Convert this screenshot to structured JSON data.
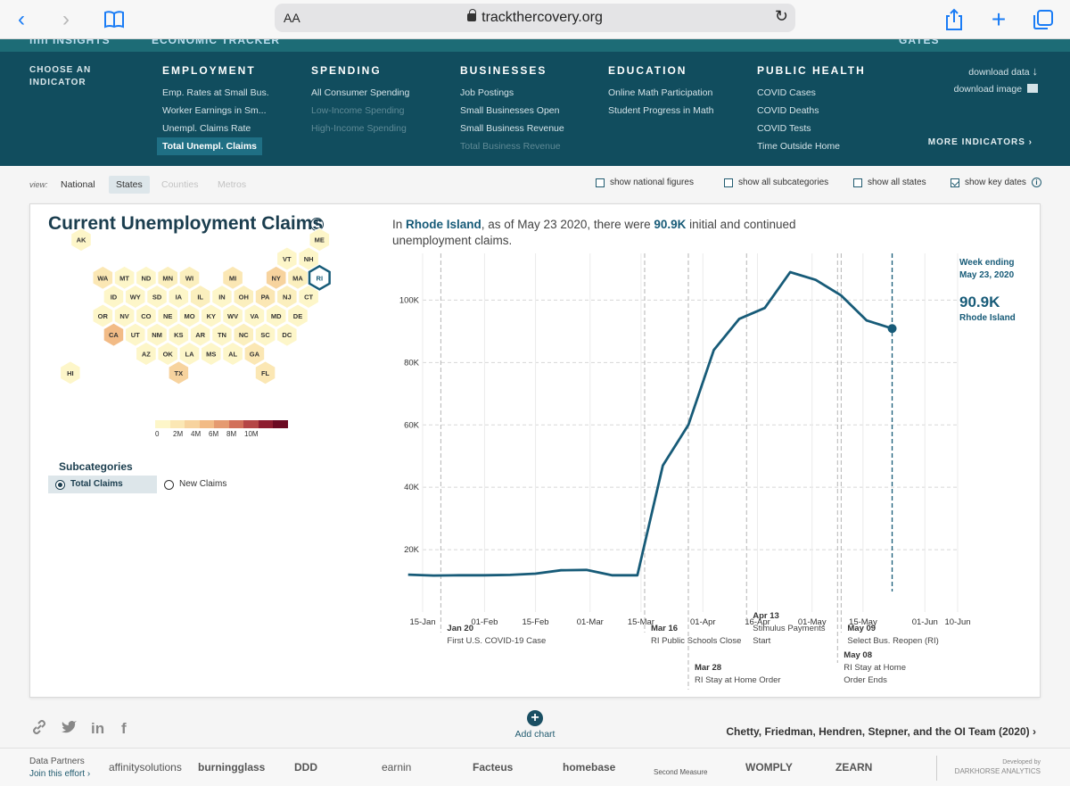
{
  "browser": {
    "url": "trackthercovery.org",
    "aa": "AA",
    "back_glyph": "‹",
    "forward_glyph": "›",
    "reload_glyph": "↻"
  },
  "header": {
    "strip_frag1": "ılılı INSIGHTS",
    "strip_frag2": "ECONOMIC TRACKER",
    "strip_frag3": "GATES"
  },
  "nav": {
    "choose_label": "CHOOSE AN INDICATOR",
    "columns": [
      {
        "title": "EMPLOYMENT",
        "items": [
          {
            "label": "Emp. Rates at Small Bus.",
            "state": "normal"
          },
          {
            "label": "Worker Earnings in Sm...",
            "state": "normal"
          },
          {
            "label": "Unempl. Claims Rate",
            "state": "normal"
          },
          {
            "label": "Total Unempl. Claims",
            "state": "active"
          }
        ]
      },
      {
        "title": "SPENDING",
        "items": [
          {
            "label": "All Consumer Spending",
            "state": "normal"
          },
          {
            "label": "Low-Income Spending",
            "state": "dim"
          },
          {
            "label": "High-Income Spending",
            "state": "dim"
          }
        ]
      },
      {
        "title": "BUSINESSES",
        "items": [
          {
            "label": "Job Postings",
            "state": "normal"
          },
          {
            "label": "Small Businesses Open",
            "state": "normal"
          },
          {
            "label": "Small Business Revenue",
            "state": "normal"
          },
          {
            "label": "Total Business Revenue",
            "state": "dim"
          }
        ]
      },
      {
        "title": "EDUCATION",
        "items": [
          {
            "label": "Online Math Participation",
            "state": "normal"
          },
          {
            "label": "Student Progress in Math",
            "state": "normal"
          }
        ]
      },
      {
        "title": "PUBLIC HEALTH",
        "items": [
          {
            "label": "COVID Cases",
            "state": "normal"
          },
          {
            "label": "COVID Deaths",
            "state": "normal"
          },
          {
            "label": "COVID Tests",
            "state": "normal"
          },
          {
            "label": "Time Outside Home",
            "state": "normal"
          }
        ]
      }
    ],
    "download_data": "download data",
    "download_image": "download image",
    "more_indicators": "MORE INDICATORS"
  },
  "view": {
    "label": "view:",
    "options": [
      {
        "label": "National",
        "state": "normal"
      },
      {
        "label": "States",
        "state": "selected"
      },
      {
        "label": "Counties",
        "state": "dim"
      },
      {
        "label": "Metros",
        "state": "dim"
      }
    ],
    "toggles": [
      {
        "label": "show national figures",
        "checked": false
      },
      {
        "label": "show all subcategories",
        "checked": false
      },
      {
        "label": "show all states",
        "checked": false
      },
      {
        "label": "show key dates",
        "checked": true
      }
    ]
  },
  "panel": {
    "title": "Current Unemployment Claims",
    "summary_pre": "In ",
    "summary_state": "Rhode Island",
    "summary_mid": ", as of May 23 2020, there were ",
    "summary_value": "90.9K",
    "summary_post": " initial and continued unemployment claims.",
    "subcategories_title": "Subcategories",
    "subcategories": [
      {
        "label": "Total Claims",
        "selected": true
      },
      {
        "label": "New Claims",
        "selected": false
      }
    ]
  },
  "hexmap": {
    "states": [
      {
        "abbr": "AK",
        "row": 0,
        "col": 0,
        "fill": "#fdf6c9"
      },
      {
        "abbr": "ME",
        "row": 0,
        "col": 11,
        "fill": "#fdf6c9"
      },
      {
        "abbr": "VT",
        "row": 1,
        "col": 9.5,
        "fill": "#fdf6c9"
      },
      {
        "abbr": "NH",
        "row": 1,
        "col": 10.5,
        "fill": "#fdf6c9"
      },
      {
        "abbr": "WA",
        "row": 2,
        "col": 1,
        "fill": "#fbe7b4"
      },
      {
        "abbr": "MT",
        "row": 2,
        "col": 2,
        "fill": "#fdf6c9"
      },
      {
        "abbr": "ND",
        "row": 2,
        "col": 3,
        "fill": "#fdf6c9"
      },
      {
        "abbr": "MN",
        "row": 2,
        "col": 4,
        "fill": "#fbefbe"
      },
      {
        "abbr": "WI",
        "row": 2,
        "col": 5,
        "fill": "#fbefbe"
      },
      {
        "abbr": "MI",
        "row": 2,
        "col": 7,
        "fill": "#fbe7b4"
      },
      {
        "abbr": "NY",
        "row": 2,
        "col": 9,
        "fill": "#f7d39e"
      },
      {
        "abbr": "MA",
        "row": 2,
        "col": 10,
        "fill": "#fbefbe"
      },
      {
        "abbr": "RI",
        "row": 2,
        "col": 11,
        "fill": "#fdf6c9",
        "selected": true
      },
      {
        "abbr": "ID",
        "row": 3,
        "col": 1.5,
        "fill": "#fdf6c9"
      },
      {
        "abbr": "WY",
        "row": 3,
        "col": 2.5,
        "fill": "#fdf6c9"
      },
      {
        "abbr": "SD",
        "row": 3,
        "col": 3.5,
        "fill": "#fdf6c9"
      },
      {
        "abbr": "IA",
        "row": 3,
        "col": 4.5,
        "fill": "#fdf6c9"
      },
      {
        "abbr": "IL",
        "row": 3,
        "col": 5.5,
        "fill": "#fbefbe"
      },
      {
        "abbr": "IN",
        "row": 3,
        "col": 6.5,
        "fill": "#fdf6c9"
      },
      {
        "abbr": "OH",
        "row": 3,
        "col": 7.5,
        "fill": "#fbefbe"
      },
      {
        "abbr": "PA",
        "row": 3,
        "col": 8.5,
        "fill": "#fbe7b4"
      },
      {
        "abbr": "NJ",
        "row": 3,
        "col": 9.5,
        "fill": "#fbefbe"
      },
      {
        "abbr": "CT",
        "row": 3,
        "col": 10.5,
        "fill": "#fdf6c9"
      },
      {
        "abbr": "OR",
        "row": 4,
        "col": 1,
        "fill": "#fdf6c9"
      },
      {
        "abbr": "NV",
        "row": 4,
        "col": 2,
        "fill": "#fdf6c9"
      },
      {
        "abbr": "CO",
        "row": 4,
        "col": 3,
        "fill": "#fdf6c9"
      },
      {
        "abbr": "NE",
        "row": 4,
        "col": 4,
        "fill": "#fdf6c9"
      },
      {
        "abbr": "MO",
        "row": 4,
        "col": 5,
        "fill": "#fdf6c9"
      },
      {
        "abbr": "KY",
        "row": 4,
        "col": 6,
        "fill": "#fdf6c9"
      },
      {
        "abbr": "WV",
        "row": 4,
        "col": 7,
        "fill": "#fdf6c9"
      },
      {
        "abbr": "VA",
        "row": 4,
        "col": 8,
        "fill": "#fdf6c9"
      },
      {
        "abbr": "MD",
        "row": 4,
        "col": 9,
        "fill": "#fdf6c9"
      },
      {
        "abbr": "DE",
        "row": 4,
        "col": 10,
        "fill": "#fdf6c9"
      },
      {
        "abbr": "CA",
        "row": 5,
        "col": 1.5,
        "fill": "#f2bb86"
      },
      {
        "abbr": "UT",
        "row": 5,
        "col": 2.5,
        "fill": "#fdf6c9"
      },
      {
        "abbr": "NM",
        "row": 5,
        "col": 3.5,
        "fill": "#fdf6c9"
      },
      {
        "abbr": "KS",
        "row": 5,
        "col": 4.5,
        "fill": "#fdf6c9"
      },
      {
        "abbr": "AR",
        "row": 5,
        "col": 5.5,
        "fill": "#fdf6c9"
      },
      {
        "abbr": "TN",
        "row": 5,
        "col": 6.5,
        "fill": "#fdf6c9"
      },
      {
        "abbr": "NC",
        "row": 5,
        "col": 7.5,
        "fill": "#fbefbe"
      },
      {
        "abbr": "SC",
        "row": 5,
        "col": 8.5,
        "fill": "#fdf6c9"
      },
      {
        "abbr": "DC",
        "row": 5,
        "col": 9.5,
        "fill": "#fdf6c9"
      },
      {
        "abbr": "AZ",
        "row": 6,
        "col": 3,
        "fill": "#fdf6c9"
      },
      {
        "abbr": "OK",
        "row": 6,
        "col": 4,
        "fill": "#fdf6c9"
      },
      {
        "abbr": "LA",
        "row": 6,
        "col": 5,
        "fill": "#fdf6c9"
      },
      {
        "abbr": "MS",
        "row": 6,
        "col": 6,
        "fill": "#fdf6c9"
      },
      {
        "abbr": "AL",
        "row": 6,
        "col": 7,
        "fill": "#fdf6c9"
      },
      {
        "abbr": "GA",
        "row": 6,
        "col": 8,
        "fill": "#fbe7b4"
      },
      {
        "abbr": "HI",
        "row": 7,
        "col": -0.5,
        "fill": "#fdf6c9"
      },
      {
        "abbr": "TX",
        "row": 7,
        "col": 4.5,
        "fill": "#f7d39e"
      },
      {
        "abbr": "FL",
        "row": 7,
        "col": 8.5,
        "fill": "#fbe7b4"
      }
    ],
    "legend_colors": [
      "#fdf6c9",
      "#fbe7b4",
      "#f7d39e",
      "#f2bb86",
      "#e59a70",
      "#d2705a",
      "#b54646",
      "#8e1d2f",
      "#6b0a22"
    ],
    "legend_ticks": [
      "0",
      "2M",
      "4M",
      "6M",
      "8M",
      "10M"
    ]
  },
  "chart_data": {
    "type": "line",
    "title": "Current Unemployment Claims",
    "series": [
      {
        "name": "Rhode Island",
        "color": "#175b78",
        "x": [
          "2020-01-11",
          "2020-01-18",
          "2020-01-25",
          "2020-02-01",
          "2020-02-08",
          "2020-02-15",
          "2020-02-22",
          "2020-02-29",
          "2020-03-07",
          "2020-03-14",
          "2020-03-21",
          "2020-03-28",
          "2020-04-04",
          "2020-04-11",
          "2020-04-18",
          "2020-04-25",
          "2020-05-02",
          "2020-05-09",
          "2020-05-16",
          "2020-05-23"
        ],
        "values": [
          12000,
          11700,
          11800,
          11800,
          11900,
          12300,
          13400,
          13500,
          11800,
          11800,
          47000,
          60000,
          84000,
          94000,
          97500,
          109000,
          106500,
          101500,
          93500,
          90900
        ]
      }
    ],
    "xlim": [
      "2020-01-15",
      "2020-06-10"
    ],
    "ylim": [
      0,
      115000
    ],
    "x_ticks": [
      {
        "date": "2020-01-15",
        "label": "15-Jan"
      },
      {
        "date": "2020-02-01",
        "label": "01-Feb"
      },
      {
        "date": "2020-02-15",
        "label": "15-Feb"
      },
      {
        "date": "2020-03-01",
        "label": "01-Mar"
      },
      {
        "date": "2020-03-15",
        "label": "15-Mar"
      },
      {
        "date": "2020-04-01",
        "label": "01-Apr"
      },
      {
        "date": "2020-04-16",
        "label": "16-Apr"
      },
      {
        "date": "2020-05-01",
        "label": "01-May"
      },
      {
        "date": "2020-05-15",
        "label": "15-May"
      },
      {
        "date": "2020-06-01",
        "label": "01-Jun"
      },
      {
        "date": "2020-06-10",
        "label": "10-Jun"
      }
    ],
    "y_ticks": [
      {
        "value": 20000,
        "label": "20K"
      },
      {
        "value": 40000,
        "label": "40K"
      },
      {
        "value": 60000,
        "label": "60K"
      },
      {
        "value": 80000,
        "label": "80K"
      },
      {
        "value": 100000,
        "label": "100K"
      }
    ],
    "key_dates": [
      {
        "date": "2020-01-20",
        "title": "Jan 20",
        "desc": "First U.S. COVID-19 Case",
        "tier": 1
      },
      {
        "date": "2020-03-16",
        "title": "Mar 16",
        "desc": "RI Public Schools Close",
        "tier": 1
      },
      {
        "date": "2020-03-28",
        "title": "Mar 28",
        "desc": "RI Stay at Home Order",
        "tier": 3
      },
      {
        "date": "2020-04-13",
        "title": "Apr 13",
        "desc": "Stimulus Payments Start",
        "tier": 0
      },
      {
        "date": "2020-05-09",
        "title": "May 09",
        "desc": "Select Bus. Reopen (RI)",
        "tier": 1
      },
      {
        "date": "2020-05-08",
        "title": "May 08",
        "desc": "RI Stay at Home Order Ends",
        "tier": 2
      }
    ],
    "current": {
      "date": "2020-05-23",
      "week_label_1": "Week ending",
      "week_label_2": "May 23, 2020",
      "value_label": "90.9K",
      "state_label": "Rhode Island"
    }
  },
  "footer": {
    "add_chart": "Add chart",
    "citation": "Chetty, Friedman, Hendren, Stepner, and the OI Team (2020)",
    "data_partners": "Data Partners",
    "join": "Join this effort",
    "partners": [
      "affinitysolutions",
      "burningglass",
      "DDD",
      "earnin",
      "Facteus",
      "homebase",
      "Second Measure",
      "WOMPLY",
      "ZEARN"
    ],
    "developed_by_1": "Developed by",
    "developed_by_2": "DARKHORSE ANALYTICS"
  }
}
